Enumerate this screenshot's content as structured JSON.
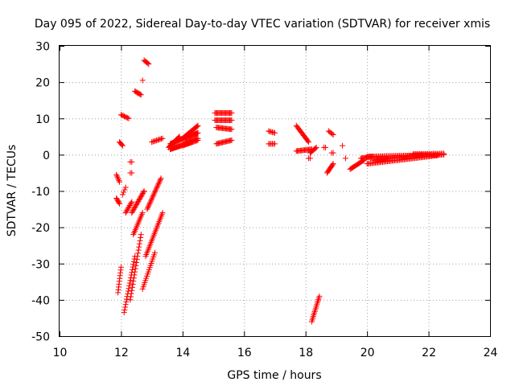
{
  "chart_data": {
    "type": "scatter",
    "title": "Day 095 of 2022, Sidereal Day-to-day VTEC variation (SDTVAR) for receiver xmis",
    "xlabel": "GPS time / hours",
    "ylabel": "SDTVAR / TECUs",
    "xlim": [
      10,
      24
    ],
    "ylim": [
      -50,
      30
    ],
    "xticks": [
      10,
      12,
      14,
      16,
      18,
      20,
      22,
      24
    ],
    "xtick_labels": [
      "10",
      "12",
      "14",
      "16",
      "18",
      "20",
      "22",
      "24"
    ],
    "yticks": [
      30,
      20,
      10,
      0,
      -10,
      -20,
      -30,
      -40,
      -50
    ],
    "ytick_labels": [
      "30",
      "20",
      "10",
      "0",
      "-10",
      "-20",
      "-30",
      "-40",
      "-50"
    ],
    "grid": true,
    "marker": "+",
    "marker_color": "#ff0000",
    "segments": [
      {
        "x0": 11.85,
        "y0": -5.5,
        "x1": 11.95,
        "y1": -7.5,
        "n": 6
      },
      {
        "x0": 11.85,
        "y0": -12.0,
        "x1": 11.95,
        "y1": -13.5,
        "n": 6
      },
      {
        "x0": 11.9,
        "y0": -38.0,
        "x1": 12.0,
        "y1": -31.0,
        "n": 10
      },
      {
        "x0": 11.95,
        "y0": 3.5,
        "x1": 12.05,
        "y1": 2.5,
        "n": 5
      },
      {
        "x0": 12.0,
        "y0": 11.0,
        "x1": 12.25,
        "y1": 10.0,
        "n": 8
      },
      {
        "x0": 12.05,
        "y0": -11.0,
        "x1": 12.15,
        "y1": -9.0,
        "n": 4
      },
      {
        "x0": 12.1,
        "y0": -43.5,
        "x1": 12.45,
        "y1": -28.0,
        "n": 22
      },
      {
        "x0": 12.15,
        "y0": -16.0,
        "x1": 12.35,
        "y1": -13.0,
        "n": 10
      },
      {
        "x0": 12.3,
        "y0": -2.0,
        "x1": 12.35,
        "y1": -2.0,
        "n": 2
      },
      {
        "x0": 12.3,
        "y0": -5.0,
        "x1": 12.35,
        "y1": -5.0,
        "n": 2
      },
      {
        "x0": 12.35,
        "y0": -16.0,
        "x1": 12.75,
        "y1": -10.0,
        "n": 20
      },
      {
        "x0": 12.3,
        "y0": -40.0,
        "x1": 12.65,
        "y1": -22.0,
        "n": 22
      },
      {
        "x0": 12.4,
        "y0": -22.0,
        "x1": 12.7,
        "y1": -16.0,
        "n": 14
      },
      {
        "x0": 12.45,
        "y0": 17.5,
        "x1": 12.65,
        "y1": 16.5,
        "n": 8
      },
      {
        "x0": 12.7,
        "y0": 20.5,
        "x1": 12.72,
        "y1": 20.5,
        "n": 1
      },
      {
        "x0": 12.75,
        "y0": 26.0,
        "x1": 12.9,
        "y1": 25.0,
        "n": 6
      },
      {
        "x0": 12.7,
        "y0": -37.0,
        "x1": 13.1,
        "y1": -27.0,
        "n": 18
      },
      {
        "x0": 12.8,
        "y0": -28.0,
        "x1": 13.35,
        "y1": -16.0,
        "n": 26
      },
      {
        "x0": 12.85,
        "y0": -15.0,
        "x1": 13.3,
        "y1": -6.5,
        "n": 24
      },
      {
        "x0": 13.0,
        "y0": 3.5,
        "x1": 13.35,
        "y1": 4.5,
        "n": 10
      },
      {
        "x0": 13.55,
        "y0": 2.0,
        "x1": 13.9,
        "y1": 5.0,
        "n": 16
      },
      {
        "x0": 13.6,
        "y0": 3.0,
        "x1": 14.5,
        "y1": 6.0,
        "n": 36
      },
      {
        "x0": 13.6,
        "y0": 1.5,
        "x1": 14.3,
        "y1": 3.5,
        "n": 28
      },
      {
        "x0": 14.0,
        "y0": 4.5,
        "x1": 14.5,
        "y1": 8.0,
        "n": 20
      },
      {
        "x0": 14.0,
        "y0": 2.5,
        "x1": 14.5,
        "y1": 4.0,
        "n": 16
      },
      {
        "x0": 14.1,
        "y0": 3.5,
        "x1": 14.5,
        "y1": 4.5,
        "n": 14
      },
      {
        "x0": 15.05,
        "y0": 11.5,
        "x1": 15.6,
        "y1": 11.5,
        "n": 18
      },
      {
        "x0": 15.05,
        "y0": 9.5,
        "x1": 15.6,
        "y1": 9.5,
        "n": 18
      },
      {
        "x0": 15.1,
        "y0": 7.5,
        "x1": 15.6,
        "y1": 7.0,
        "n": 16
      },
      {
        "x0": 15.1,
        "y0": 3.0,
        "x1": 15.6,
        "y1": 4.0,
        "n": 16
      },
      {
        "x0": 16.8,
        "y0": 6.5,
        "x1": 17.0,
        "y1": 6.0,
        "n": 6
      },
      {
        "x0": 16.8,
        "y0": 3.0,
        "x1": 17.0,
        "y1": 3.0,
        "n": 6
      },
      {
        "x0": 17.7,
        "y0": 8.0,
        "x1": 18.1,
        "y1": 3.5,
        "n": 16
      },
      {
        "x0": 17.7,
        "y0": 1.0,
        "x1": 18.2,
        "y1": 1.5,
        "n": 16
      },
      {
        "x0": 18.15,
        "y0": 0.5,
        "x1": 18.35,
        "y1": 2.0,
        "n": 8
      },
      {
        "x0": 18.1,
        "y0": -1.0,
        "x1": 18.15,
        "y1": -1.0,
        "n": 2
      },
      {
        "x0": 18.2,
        "y0": -46.0,
        "x1": 18.45,
        "y1": -39.0,
        "n": 16
      },
      {
        "x0": 18.6,
        "y0": 2.0,
        "x1": 18.65,
        "y1": 2.0,
        "n": 2
      },
      {
        "x0": 18.75,
        "y0": 6.5,
        "x1": 18.9,
        "y1": 5.5,
        "n": 5
      },
      {
        "x0": 18.7,
        "y0": -5.0,
        "x1": 18.9,
        "y1": -2.5,
        "n": 10
      },
      {
        "x0": 18.85,
        "y0": 0.5,
        "x1": 18.9,
        "y1": 0.5,
        "n": 2
      },
      {
        "x0": 19.2,
        "y0": 2.5,
        "x1": 19.2,
        "y1": 2.5,
        "n": 1
      },
      {
        "x0": 19.3,
        "y0": -1.0,
        "x1": 19.3,
        "y1": -1.0,
        "n": 1
      },
      {
        "x0": 19.45,
        "y0": -4.0,
        "x1": 19.9,
        "y1": -1.5,
        "n": 16
      },
      {
        "x0": 19.8,
        "y0": -1.0,
        "x1": 20.2,
        "y1": -0.5,
        "n": 14
      },
      {
        "x0": 20.0,
        "y0": -0.5,
        "x1": 22.5,
        "y1": 0.0,
        "n": 60
      },
      {
        "x0": 20.0,
        "y0": -2.5,
        "x1": 22.3,
        "y1": -0.2,
        "n": 60
      },
      {
        "x0": 20.2,
        "y0": -1.5,
        "x1": 21.8,
        "y1": 0.0,
        "n": 40
      },
      {
        "x0": 21.5,
        "y0": 0.2,
        "x1": 22.5,
        "y1": 0.3,
        "n": 24
      }
    ]
  }
}
